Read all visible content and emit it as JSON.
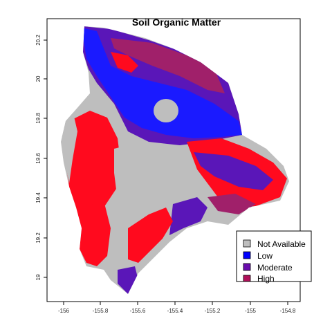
{
  "map": {
    "title": "Soil Organic Matter",
    "x_ticks": [
      "-156",
      "-155.8",
      "-155.6",
      "-155.4",
      "-155.2",
      "-155",
      "-154.8"
    ],
    "y_ticks": [
      "20.2",
      "20",
      "19.8",
      "19.6",
      "19.4",
      "19.2",
      "19"
    ]
  },
  "legend": {
    "items": [
      {
        "label": "Not Available",
        "color": "#bebebe"
      },
      {
        "label": "Low",
        "color": "#0000ff"
      },
      {
        "label": "Moderate",
        "color": "#6a0dad"
      },
      {
        "label": "High",
        "color": "#b0105a"
      }
    ]
  },
  "colors": {
    "not_available": "#bebebe",
    "low": "#1a1aff",
    "moderate": "#5a16b8",
    "high": "#ff0a1e",
    "high_dark": "#a0206a"
  }
}
